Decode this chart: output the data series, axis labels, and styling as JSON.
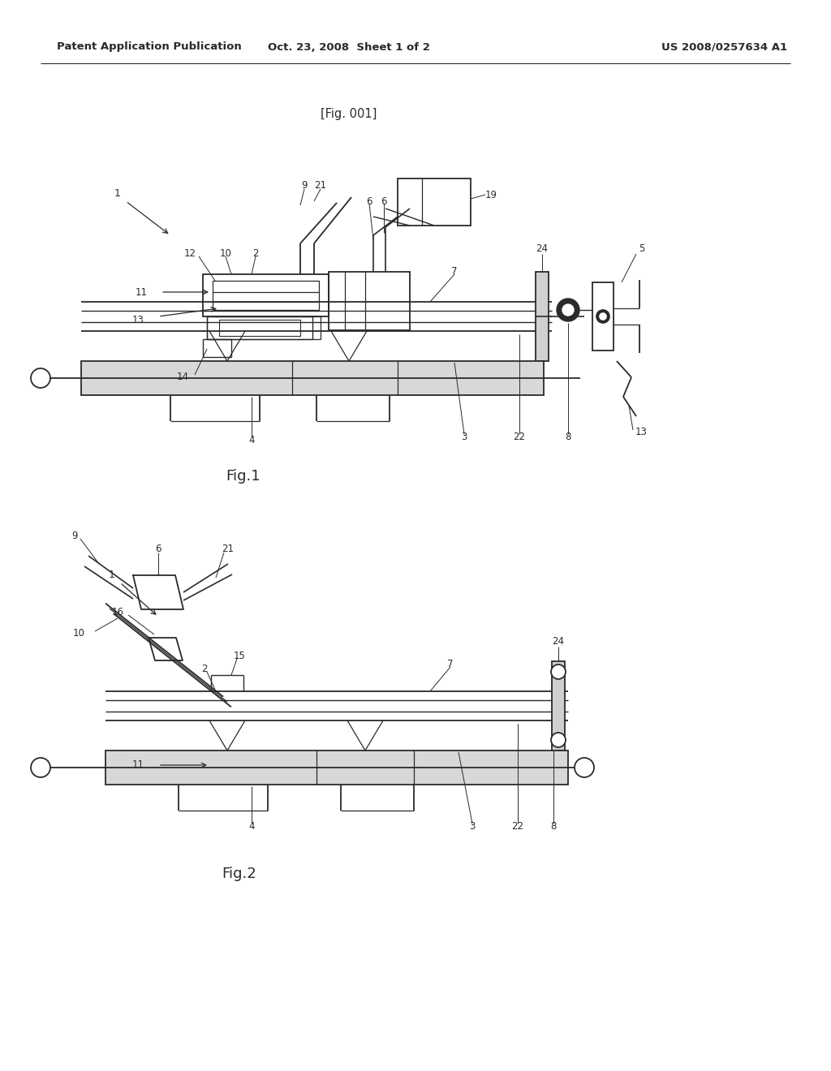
{
  "bg_color": "#ffffff",
  "line_color": "#2a2a2a",
  "header_left": "Patent Application Publication",
  "header_center": "Oct. 23, 2008  Sheet 1 of 2",
  "header_right": "US 2008/0257634 A1",
  "fig1_label": "[Fig. 001]",
  "fig1_caption": "Fig.1",
  "fig2_caption": "Fig.2"
}
